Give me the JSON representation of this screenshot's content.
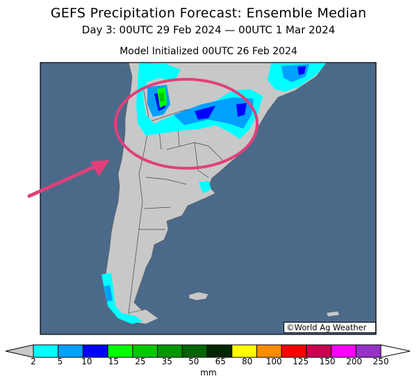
{
  "header": {
    "title": "GEFS Precipitation Forecast: Ensemble Median",
    "period": "Day 3: 00UTC 29 Feb 2024 — 00UTC 1 Mar 2024",
    "init": "Model Initialized 00UTC 26 Feb 2024"
  },
  "credit": "©World Ag Weather",
  "legend": {
    "unit": "mm",
    "ticks": [
      "2",
      "5",
      "10",
      "15",
      "25",
      "35",
      "50",
      "65",
      "80",
      "100",
      "125",
      "150",
      "200",
      "250"
    ],
    "colors": [
      "#00ffff",
      "#00a0ff",
      "#0000ff",
      "#00ff00",
      "#00c800",
      "#009600",
      "#006400",
      "#002800",
      "#ffff00",
      "#ff8c00",
      "#ff0000",
      "#c80050",
      "#ff00ff",
      "#9632c8"
    ]
  },
  "map": {
    "ocean_color": "#4b6a8a",
    "land_color": "#c8c8c8",
    "annotation_color": "#e0407a"
  }
}
